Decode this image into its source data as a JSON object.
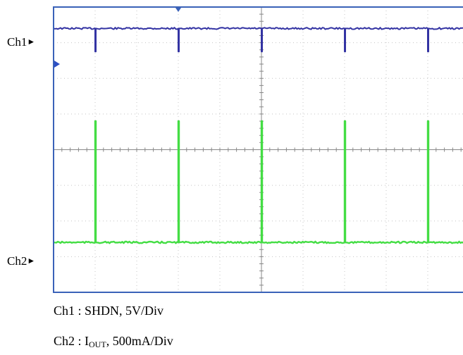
{
  "channels": [
    {
      "label": "Ch1",
      "marker": "right-triangle-marker",
      "color": "#3333a3"
    },
    {
      "label": "Ch2",
      "marker": "right-triangle-marker",
      "color": "#44dd44"
    }
  ],
  "captions": {
    "ch1": {
      "prefix": "Ch1 : ",
      "name": "SHDN",
      "scale": ", 5V/Div"
    },
    "ch2": {
      "prefix": "Ch2 : ",
      "main": "I",
      "sub": "OUT",
      "scale": ", 500mA/Div"
    }
  },
  "chart_data": {
    "type": "line",
    "title": "",
    "xlabel": "",
    "ylabel": "",
    "grid": true,
    "x_divisions": 10,
    "y_divisions": 8,
    "ylim": [
      -4,
      4
    ],
    "series": [
      {
        "name": "Ch1",
        "color": "#3333a3",
        "baseline": 3.4,
        "pulse_times_div": [
          1.0,
          3.0,
          5.0,
          7.0,
          9.0
        ],
        "pulse_delta": -0.65
      },
      {
        "name": "Ch2",
        "color": "#44dd44",
        "baseline": -2.6,
        "pulse_times_div": [
          1.0,
          3.0,
          5.0,
          7.0,
          9.0
        ],
        "pulse_delta": 3.4
      }
    ]
  }
}
